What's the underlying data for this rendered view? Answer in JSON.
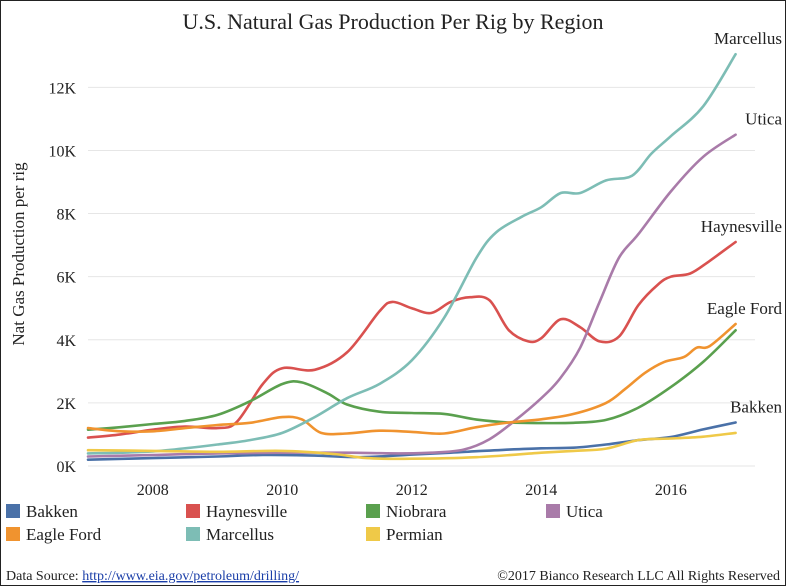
{
  "chart_data": {
    "type": "line",
    "title": "U.S. Natural Gas Production Per Rig by Region",
    "xlabel": "",
    "ylabel": "Nat Gas Production per rig",
    "xlim": [
      2007.0,
      2017.3
    ],
    "ylim": [
      0,
      13500
    ],
    "x_ticks": [
      2008,
      2010,
      2012,
      2014,
      2016
    ],
    "x_tick_labels": [
      "2008",
      "2010",
      "2012",
      "2014",
      "2016"
    ],
    "y_ticks": [
      0,
      2000,
      4000,
      6000,
      8000,
      10000,
      12000
    ],
    "y_tick_labels": [
      "0K",
      "2K",
      "4K",
      "6K",
      "8K",
      "10K",
      "12K"
    ],
    "grid": "horizontal",
    "legend": "bottom",
    "series": [
      {
        "name": "Bakken",
        "color": "#4a71a8",
        "x": [
          2007.0,
          2008.0,
          2009.0,
          2009.7,
          2010.5,
          2011.2,
          2012.0,
          2012.6,
          2013.0,
          2013.5,
          2014.0,
          2014.5,
          2015.0,
          2015.5,
          2016.0,
          2016.5,
          2017.0
        ],
        "y": [
          200,
          250,
          300,
          350,
          330,
          280,
          360,
          420,
          470,
          520,
          560,
          580,
          680,
          820,
          920,
          1160,
          1380
        ]
      },
      {
        "name": "Haynesville",
        "color": "#d9514f",
        "x": [
          2007.0,
          2007.5,
          2008.0,
          2008.5,
          2009.0,
          2009.3,
          2009.7,
          2010.0,
          2010.5,
          2011.0,
          2011.5,
          2011.7,
          2012.0,
          2012.3,
          2012.6,
          2012.9,
          2013.2,
          2013.5,
          2013.8,
          2014.0,
          2014.3,
          2014.6,
          2014.9,
          2015.2,
          2015.5,
          2015.8,
          2016.0,
          2016.3,
          2016.6,
          2017.0
        ],
        "y": [
          900,
          1000,
          1150,
          1250,
          1200,
          1400,
          2600,
          3100,
          3050,
          3600,
          4900,
          5200,
          5000,
          4850,
          5200,
          5350,
          5250,
          4300,
          3950,
          4050,
          4650,
          4400,
          3950,
          4100,
          5100,
          5750,
          6000,
          6100,
          6500,
          7100
        ]
      },
      {
        "name": "Niobrara",
        "color": "#5aa04e",
        "x": [
          2007.0,
          2007.5,
          2008.0,
          2008.5,
          2009.0,
          2009.5,
          2010.0,
          2010.3,
          2010.7,
          2011.0,
          2011.5,
          2012.0,
          2012.5,
          2013.0,
          2013.5,
          2014.0,
          2014.5,
          2015.0,
          2015.5,
          2016.0,
          2016.5,
          2017.0
        ],
        "y": [
          1150,
          1230,
          1330,
          1430,
          1620,
          2050,
          2600,
          2650,
          2300,
          1950,
          1720,
          1680,
          1650,
          1470,
          1380,
          1360,
          1370,
          1460,
          1850,
          2500,
          3300,
          4300
        ]
      },
      {
        "name": "Utica",
        "color": "#a97ba9",
        "x": [
          2007.0,
          2008.0,
          2009.0,
          2010.0,
          2011.0,
          2011.8,
          2012.3,
          2012.8,
          2013.2,
          2013.6,
          2014.0,
          2014.3,
          2014.6,
          2014.9,
          2015.2,
          2015.5,
          2016.0,
          2016.5,
          2017.0
        ],
        "y": [
          300,
          350,
          400,
          420,
          420,
          400,
          420,
          520,
          850,
          1450,
          2150,
          2800,
          3750,
          5200,
          6600,
          7350,
          8700,
          9800,
          10500
        ]
      },
      {
        "name": "Eagle Ford",
        "color": "#f0932f",
        "x": [
          2007.0,
          2007.5,
          2008.0,
          2008.5,
          2009.0,
          2009.5,
          2010.0,
          2010.3,
          2010.6,
          2011.0,
          2011.5,
          2012.0,
          2012.5,
          2013.0,
          2013.5,
          2014.0,
          2014.5,
          2015.0,
          2015.3,
          2015.6,
          2015.9,
          2016.2,
          2016.4,
          2016.6,
          2017.0
        ],
        "y": [
          1200,
          1100,
          1100,
          1200,
          1300,
          1370,
          1550,
          1480,
          1050,
          1030,
          1120,
          1080,
          1030,
          1230,
          1380,
          1480,
          1650,
          2000,
          2450,
          2950,
          3300,
          3450,
          3750,
          3800,
          4500
        ]
      },
      {
        "name": "Marcellus",
        "color": "#7dbdb5",
        "x": [
          2007.0,
          2007.5,
          2008.0,
          2008.5,
          2009.0,
          2009.5,
          2010.0,
          2010.5,
          2011.0,
          2011.5,
          2012.0,
          2012.5,
          2013.0,
          2013.3,
          2013.7,
          2014.0,
          2014.3,
          2014.6,
          2015.0,
          2015.4,
          2015.7,
          2016.0,
          2016.5,
          2017.0
        ],
        "y": [
          400,
          420,
          460,
          560,
          680,
          820,
          1050,
          1550,
          2150,
          2600,
          3350,
          4700,
          6600,
          7400,
          7900,
          8200,
          8650,
          8650,
          9050,
          9200,
          9900,
          10450,
          11400,
          13050
        ]
      },
      {
        "name": "Permian",
        "color": "#efc948",
        "x": [
          2007.0,
          2008.0,
          2009.0,
          2010.0,
          2010.8,
          2011.3,
          2012.0,
          2013.0,
          2014.0,
          2014.5,
          2015.0,
          2015.5,
          2016.0,
          2016.5,
          2017.0
        ],
        "y": [
          500,
          480,
          450,
          480,
          380,
          250,
          230,
          280,
          420,
          480,
          550,
          820,
          870,
          930,
          1050
        ]
      }
    ],
    "end_labels": [
      {
        "text": "Marcellus",
        "series": "Marcellus"
      },
      {
        "text": "Utica",
        "series": "Utica"
      },
      {
        "text": "Haynesville",
        "series": "Haynesville"
      },
      {
        "text": "Eagle Ford",
        "series": "Eagle Ford"
      },
      {
        "text": "Bakken",
        "series": "Bakken"
      }
    ]
  },
  "footer": {
    "source_prefix": "Data Source: ",
    "source_link": "http://www.eia.gov/petroleum/drilling/",
    "copyright": "©2017 Bianco Research LLC  All Rights Reserved"
  }
}
